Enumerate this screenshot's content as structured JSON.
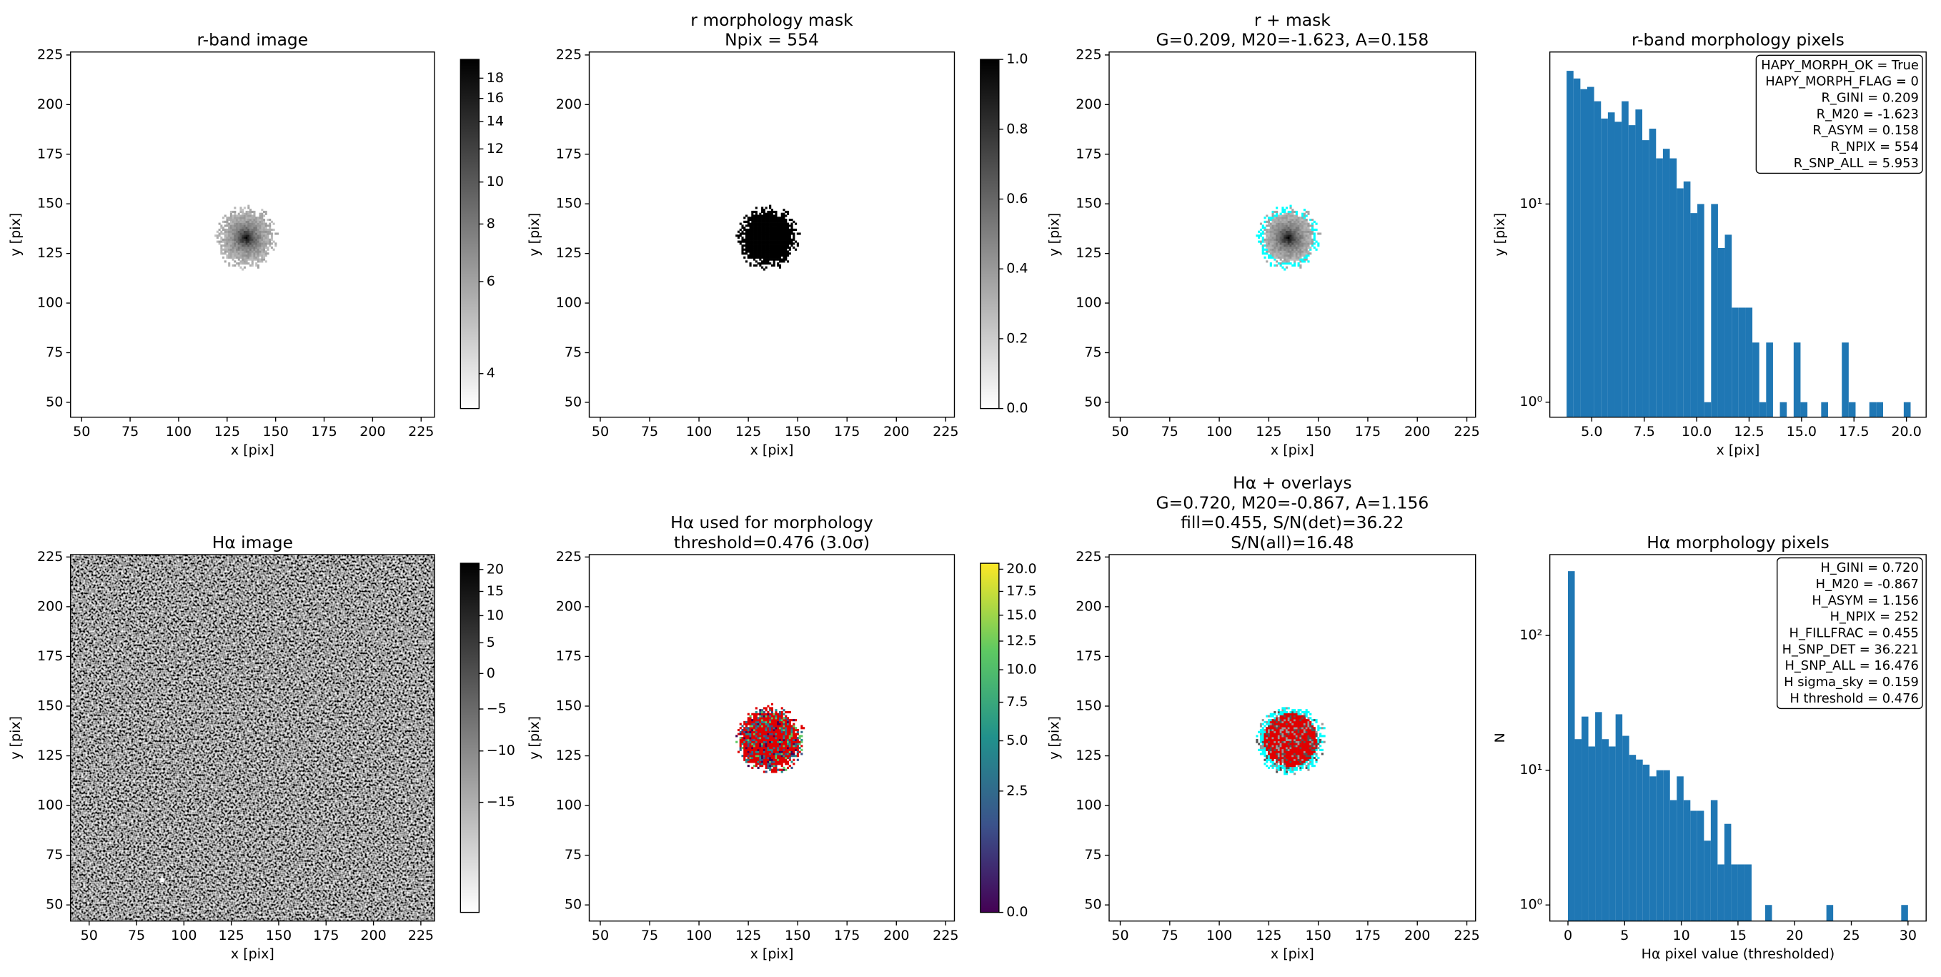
{
  "chart_data": [
    {
      "type": "image",
      "title": [
        "r-band image"
      ],
      "xlabel": "x [pix]",
      "ylabel": "y [pix]",
      "xlim": [
        44.3,
        231.9
      ],
      "ylim": [
        42.5,
        226.5
      ],
      "xticks": [
        50,
        75,
        100,
        125,
        150,
        175,
        200,
        225
      ],
      "yticks": [
        50,
        75,
        100,
        125,
        150,
        175,
        200,
        225
      ],
      "cmap": "gray_r",
      "colorbar": {
        "lim": [
          3.5,
          20.1
        ],
        "stretch": "log",
        "offset": -1.5,
        "ticks": [
          4,
          6,
          8,
          10,
          12,
          14,
          16,
          18
        ]
      }
    },
    {
      "type": "image",
      "title": [
        "r morphology mask",
        "Npix = 554"
      ],
      "xlabel": "x [pix]",
      "ylabel": "y [pix]",
      "xlim": [
        44.4,
        229.4
      ],
      "ylim": [
        42.5,
        226.5
      ],
      "xticks": [
        50,
        75,
        100,
        125,
        150,
        175,
        200,
        225
      ],
      "yticks": [
        50,
        75,
        100,
        125,
        150,
        175,
        200,
        225
      ],
      "cmap": "gray_r",
      "colorbar": {
        "lim": [
          0,
          1
        ],
        "stretch": "linear",
        "ticks": [
          {
            "value": 0,
            "label": "0.0"
          },
          0.2,
          0.4,
          0.6,
          0.8,
          {
            "value": 1,
            "label": "1.0"
          }
        ]
      }
    },
    {
      "type": "image",
      "title": [
        "r + mask",
        "G=0.209, M20=-1.623, A=0.158"
      ],
      "xlabel": "x [pix]",
      "ylabel": "y [pix]",
      "xlim": [
        44.4,
        229.4
      ],
      "ylim": [
        42.5,
        226.5
      ],
      "xticks": [
        50,
        75,
        100,
        125,
        150,
        175,
        200,
        225
      ],
      "yticks": [
        50,
        75,
        100,
        125,
        150,
        175,
        200,
        225
      ],
      "cmap": "gray_r"
    },
    {
      "type": "histogram",
      "title": [
        "r-band morphology pixels"
      ],
      "xlabel": "x [pix]",
      "ylabel": "y [pix]",
      "xlim": [
        3.0,
        20.94
      ],
      "ylim": [
        0.84,
        58.5
      ],
      "log_y": true,
      "color": "#1f77b4",
      "xticks": [
        {
          "value": 5,
          "label": "5.0"
        },
        7.5,
        {
          "value": 10,
          "label": "10.0"
        },
        12.5,
        {
          "value": 15,
          "label": "15.0"
        },
        17.5,
        {
          "value": 20,
          "label": "20.0"
        }
      ],
      "yticks": [
        {
          "value": 1,
          "label": "10⁰"
        },
        {
          "value": 10,
          "label": "10¹"
        }
      ],
      "bins": [
        3.8,
        4.128,
        4.456,
        4.784,
        5.112,
        5.44,
        5.768,
        6.096,
        6.424,
        6.752,
        7.08,
        7.408,
        7.736,
        8.064,
        8.392,
        8.72,
        9.048,
        9.376,
        9.704,
        10.032,
        10.36,
        10.688,
        11.016,
        11.344,
        11.672,
        12.0,
        12.328,
        12.656,
        12.984,
        13.312,
        13.64,
        13.968,
        14.296,
        14.624,
        14.952,
        15.28,
        15.608,
        15.936,
        16.264,
        16.592,
        16.92,
        17.248,
        17.576,
        17.904,
        18.232,
        18.56,
        18.888,
        19.216,
        19.544,
        19.872,
        20.2
      ],
      "values": [
        47,
        43,
        38,
        39,
        33,
        27,
        29,
        26,
        33,
        25,
        30,
        21,
        24,
        17,
        19,
        17,
        12,
        13,
        9,
        10,
        1,
        10,
        6,
        7,
        3,
        3,
        3,
        2,
        1,
        2,
        0,
        1,
        0,
        2,
        1,
        0,
        0,
        1,
        0,
        0,
        2,
        1,
        0,
        0,
        1,
        1,
        0,
        0,
        0,
        1
      ],
      "annotation": [
        "HAPY_MORPH_OK = True",
        "HAPY_MORPH_FLAG = 0",
        "R_GINI = 0.209",
        "R_M20 = -1.623",
        "R_ASYM = 0.158",
        "R_NPIX = 554",
        "R_SNP_ALL = 5.953"
      ]
    },
    {
      "type": "image",
      "title": [
        "Hα image"
      ],
      "xlabel": "x [pix]",
      "ylabel": "y [pix]",
      "xlim": [
        40.2,
        232.2
      ],
      "ylim": [
        41.9,
        226.2
      ],
      "xticks": [
        50,
        75,
        100,
        125,
        150,
        175,
        200,
        225
      ],
      "yticks": [
        50,
        75,
        100,
        125,
        150,
        175,
        200,
        225
      ],
      "cmap": "gray_r",
      "colorbar": {
        "lim": [
          -22.6,
          21.5
        ],
        "stretch": "log",
        "offset": 35,
        "ticks": [
          20,
          15,
          10,
          5,
          0,
          {
            "value": -5,
            "label": "−5"
          },
          {
            "value": -10,
            "label": "−10"
          },
          {
            "value": -15,
            "label": "−15"
          }
        ]
      }
    },
    {
      "type": "image",
      "title": [
        "Hα used for morphology",
        "threshold=0.476 (3.0σ)"
      ],
      "xlabel": "x [pix]",
      "ylabel": "y [pix]",
      "xlim": [
        44.4,
        229.4
      ],
      "ylim": [
        41.9,
        226.2
      ],
      "xticks": [
        50,
        75,
        100,
        125,
        150,
        175,
        200,
        225
      ],
      "yticks": [
        50,
        75,
        100,
        125,
        150,
        175,
        200,
        225
      ],
      "cmap": "viridis",
      "colorbar": {
        "lim": [
          0,
          20.7
        ],
        "stretch": "sqrt",
        "ticks": [
          {
            "value": 0,
            "label": "0.0"
          },
          2.5,
          {
            "value": 5,
            "label": "5.0"
          },
          7.5,
          {
            "value": 10,
            "label": "10.0"
          },
          12.5,
          {
            "value": 15,
            "label": "15.0"
          },
          17.5,
          {
            "value": 20,
            "label": "20.0"
          }
        ]
      }
    },
    {
      "type": "image",
      "title": [
        "Hα + overlays",
        "G=0.720, M20=-0.867, A=1.156",
        "fill=0.455, S/N(det)=36.22",
        "S/N(all)=16.48"
      ],
      "xlabel": "x [pix]",
      "ylabel": "y [pix]",
      "xlim": [
        44.4,
        229.4
      ],
      "ylim": [
        41.9,
        226.2
      ],
      "xticks": [
        50,
        75,
        100,
        125,
        150,
        175,
        200,
        225
      ],
      "yticks": [
        50,
        75,
        100,
        125,
        150,
        175,
        200,
        225
      ],
      "cmap": "gray_r"
    },
    {
      "type": "histogram",
      "title": [
        "Hα morphology pixels"
      ],
      "xlabel": "Hα pixel value (thresholded)",
      "ylabel": "N",
      "xlim": [
        -1.6,
        31.6
      ],
      "ylim": [
        0.76,
        398
      ],
      "log_y": true,
      "color": "#1f77b4",
      "xticks": [
        0,
        5,
        10,
        15,
        20,
        25,
        30
      ],
      "yticks": [
        {
          "value": 1,
          "label": "10⁰"
        },
        {
          "value": 10,
          "label": "10¹"
        },
        {
          "value": 100,
          "label": "10²"
        }
      ],
      "bins": [
        0,
        0.6,
        1.2,
        1.8,
        2.4,
        3,
        3.6,
        4.2,
        4.8,
        5.4,
        6,
        6.6,
        7.2,
        7.8,
        8.4,
        9,
        9.6,
        10.2,
        10.8,
        11.4,
        12,
        12.6,
        13.2,
        13.8,
        14.4,
        15,
        15.6,
        16.2,
        16.8,
        17.4,
        18,
        18.6,
        19.2,
        19.8,
        20.4,
        21,
        21.6,
        22.2,
        22.8,
        23.4,
        24,
        24.6,
        25.2,
        25.8,
        26.4,
        27,
        27.6,
        28.2,
        28.8,
        29.4,
        30
      ],
      "values": [
        300,
        17,
        25,
        15,
        27,
        17,
        15,
        26,
        18,
        13,
        12,
        11,
        9,
        10,
        10,
        6,
        9,
        6,
        5,
        5,
        3,
        6,
        2,
        4,
        2,
        2,
        2,
        0,
        0,
        1,
        0,
        0,
        0,
        0,
        0,
        0,
        0,
        0,
        1,
        0,
        0,
        0,
        0,
        0,
        0,
        0,
        0,
        0,
        0,
        1
      ],
      "annotation": [
        "H_GINI = 0.720",
        "H_M20 = -0.867",
        "H_ASYM = 1.156",
        "H_NPIX = 252",
        "H_FILLFRAC = 0.455",
        "H_SNP_DET = 36.221",
        "H_SNP_ALL = 16.476",
        "H sigma_sky = 0.159",
        "H threshold = 0.476"
      ]
    }
  ]
}
